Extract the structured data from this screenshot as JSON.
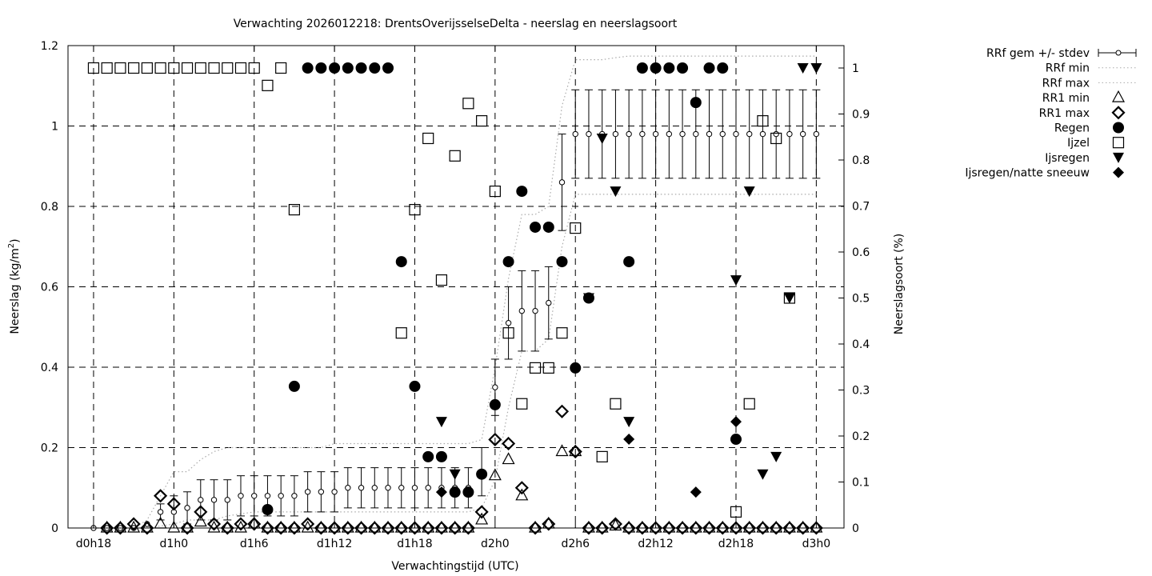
{
  "chart_data": {
    "type": "scatter",
    "title": "Verwachting 2026012218: DrentsOverijsselseDelta - neerslag en neerslagsoort",
    "xlabel": "Verwachtingstijd (UTC)",
    "ylabel": "Neerslag (kg/m²)",
    "ylabel_parts": [
      "Neerslag (kg/m",
      "2",
      ")"
    ],
    "y2label": "Neerslagsoort (%)",
    "x_unit": "hours since d0h0",
    "xlim": [
      16.09,
      74.07
    ],
    "ylim": [
      0,
      1.2
    ],
    "y2lim": [
      0,
      1.0487
    ],
    "grid": true,
    "legend_position": "outside-right-top",
    "x_ticks": [
      {
        "v": 18,
        "label": "d0h18"
      },
      {
        "v": 24,
        "label": "d1h0"
      },
      {
        "v": 30,
        "label": "d1h6"
      },
      {
        "v": 36,
        "label": "d1h12"
      },
      {
        "v": 42,
        "label": "d1h18"
      },
      {
        "v": 48,
        "label": "d2h0"
      },
      {
        "v": 54,
        "label": "d2h6"
      },
      {
        "v": 60,
        "label": "d2h12"
      },
      {
        "v": 66,
        "label": "d2h18"
      },
      {
        "v": 72,
        "label": "d3h0"
      }
    ],
    "y_ticks": [
      {
        "v": 0,
        "label": "0"
      },
      {
        "v": 0.2,
        "label": "0.2"
      },
      {
        "v": 0.4,
        "label": "0.4"
      },
      {
        "v": 0.6,
        "label": "0.6"
      },
      {
        "v": 0.8,
        "label": "0.8"
      },
      {
        "v": 1.0,
        "label": "1"
      },
      {
        "v": 1.2,
        "label": "1.2"
      }
    ],
    "y2_ticks": [
      {
        "v": 0,
        "label": "0"
      },
      {
        "v": 0.1,
        "label": "0.1"
      },
      {
        "v": 0.2,
        "label": "0.2"
      },
      {
        "v": 0.3,
        "label": "0.3"
      },
      {
        "v": 0.4,
        "label": "0.4"
      },
      {
        "v": 0.5,
        "label": "0.5"
      },
      {
        "v": 0.6,
        "label": "0.6"
      },
      {
        "v": 0.7,
        "label": "0.7"
      },
      {
        "v": 0.8,
        "label": "0.8"
      },
      {
        "v": 0.9,
        "label": "0.9"
      },
      {
        "v": 1.0,
        "label": "1"
      }
    ],
    "hours_start": 18,
    "legend": [
      "RRf gem +/- stdev",
      "RRf min",
      "RRf max",
      "RR1 min",
      "RR1 max",
      "Regen",
      "Ijzel",
      "Ijsregen",
      "Ijsregen/natte sneeuw"
    ],
    "rrf_mean": [
      0,
      0,
      0,
      0,
      0.01,
      0.04,
      0.04,
      0.05,
      0.07,
      0.07,
      0.07,
      0.08,
      0.08,
      0.08,
      0.08,
      0.08,
      0.09,
      0.09,
      0.09,
      0.1,
      0.1,
      0.1,
      0.1,
      0.1,
      0.1,
      0.1,
      0.1,
      0.1,
      0.1,
      0.14,
      0.35,
      0.51,
      0.54,
      0.54,
      0.56,
      0.86,
      0.98,
      0.98,
      0.98,
      0.98,
      0.98,
      0.98,
      0.98,
      0.98,
      0.98,
      0.98,
      0.98,
      0.98,
      0.98,
      0.98,
      0.98,
      0.98,
      0.98,
      0.98,
      0.98
    ],
    "rrf_stdev": [
      0,
      0,
      0,
      0,
      0,
      0.02,
      0.04,
      0.04,
      0.05,
      0.05,
      0.05,
      0.05,
      0.05,
      0.05,
      0.05,
      0.05,
      0.05,
      0.05,
      0.05,
      0.05,
      0.05,
      0.05,
      0.05,
      0.05,
      0.05,
      0.05,
      0.05,
      0.05,
      0.05,
      0.06,
      0.07,
      0.09,
      0.1,
      0.1,
      0.09,
      0.12,
      0.11,
      0.11,
      0.11,
      0.11,
      0.11,
      0.11,
      0.11,
      0.11,
      0.11,
      0.11,
      0.11,
      0.11,
      0.11,
      0.11,
      0.11,
      0.11,
      0.11,
      0.11,
      0.11
    ],
    "rrf_min": [
      0,
      0,
      0,
      0,
      0,
      0.005,
      0.01,
      0.02,
      0.02,
      0.02,
      0.03,
      0.035,
      0.04,
      0.04,
      0.04,
      0.04,
      0.04,
      0.04,
      0.04,
      0.04,
      0.04,
      0.04,
      0.04,
      0.04,
      0.04,
      0.04,
      0.04,
      0.04,
      0.04,
      0.05,
      0.12,
      0.3,
      0.44,
      0.44,
      0.47,
      0.7,
      0.83,
      0.83,
      0.83,
      0.83,
      0.83,
      0.83,
      0.83,
      0.83,
      0.83,
      0.83,
      0.83,
      0.83,
      0.83,
      0.83,
      0.83,
      0.83,
      0.83,
      0.83,
      0.83
    ],
    "rrf_max": [
      0,
      0,
      0,
      0,
      0.02,
      0.08,
      0.14,
      0.14,
      0.17,
      0.19,
      0.2,
      0.2,
      0.2,
      0.2,
      0.2,
      0.2,
      0.2,
      0.2,
      0.21,
      0.21,
      0.21,
      0.21,
      0.21,
      0.21,
      0.21,
      0.21,
      0.21,
      0.21,
      0.21,
      0.22,
      0.4,
      0.62,
      0.78,
      0.78,
      0.8,
      1.05,
      1.165,
      1.165,
      1.165,
      1.17,
      1.174,
      1.174,
      1.174,
      1.174,
      1.174,
      1.174,
      1.174,
      1.174,
      1.174,
      1.174,
      1.174,
      1.174,
      1.174,
      1.174,
      1.174
    ],
    "rr1_min": [
      null,
      0,
      0,
      0,
      0,
      0.01,
      0,
      0,
      0.015,
      0,
      0,
      0,
      0.01,
      0,
      0,
      0,
      0,
      0,
      0,
      0,
      0,
      0,
      0,
      0,
      0,
      0,
      0,
      0,
      0,
      0.02,
      0.13,
      0.17,
      0.08,
      0,
      0.01,
      0.19,
      0.19,
      0,
      0,
      0.005,
      0,
      0,
      0,
      0,
      0,
      0,
      0,
      0,
      0,
      0,
      0,
      0,
      0,
      0,
      0
    ],
    "rr1_max": [
      null,
      0,
      0,
      0.01,
      0,
      0.08,
      0.06,
      0,
      0.04,
      0.01,
      0,
      0.01,
      0.01,
      0,
      0,
      0,
      0.01,
      0,
      0,
      0,
      0,
      0,
      0,
      0,
      0,
      0,
      0,
      0,
      0,
      0.04,
      0.22,
      0.21,
      0.1,
      0,
      0.01,
      0.29,
      0.19,
      0,
      0,
      0.01,
      0,
      0,
      0,
      0,
      0,
      0,
      0,
      0,
      0,
      0,
      0,
      0,
      0,
      0,
      0
    ],
    "regen": [
      [
        31,
        0.04
      ],
      [
        33,
        0.308
      ],
      [
        34,
        1
      ],
      [
        35,
        1
      ],
      [
        36,
        1
      ],
      [
        37,
        1
      ],
      [
        38,
        1
      ],
      [
        39,
        1
      ],
      [
        40,
        1
      ],
      [
        41,
        0.579
      ],
      [
        42,
        0.308
      ],
      [
        43,
        0.155
      ],
      [
        44,
        0.155
      ],
      [
        45,
        0.078
      ],
      [
        46,
        0.078
      ],
      [
        47,
        0.117
      ],
      [
        48,
        0.268
      ],
      [
        49,
        0.579
      ],
      [
        50,
        0.732
      ],
      [
        51,
        0.654
      ],
      [
        52,
        0.654
      ],
      [
        53,
        0.579
      ],
      [
        54,
        0.348
      ],
      [
        55,
        0.5
      ],
      [
        58,
        0.579
      ],
      [
        59,
        1
      ],
      [
        60,
        1
      ],
      [
        61,
        1
      ],
      [
        62,
        1
      ],
      [
        63,
        0.925
      ],
      [
        64,
        1
      ],
      [
        65,
        1
      ],
      [
        66,
        0.193
      ]
    ],
    "ijzel": [
      [
        18,
        1
      ],
      [
        19,
        1
      ],
      [
        20,
        1
      ],
      [
        21,
        1
      ],
      [
        22,
        1
      ],
      [
        23,
        1
      ],
      [
        24,
        1
      ],
      [
        25,
        1
      ],
      [
        26,
        1
      ],
      [
        27,
        1
      ],
      [
        28,
        1
      ],
      [
        29,
        1
      ],
      [
        30,
        1
      ],
      [
        31,
        0.962
      ],
      [
        32,
        1
      ],
      [
        33,
        0.692
      ],
      [
        41,
        0.424
      ],
      [
        42,
        0.692
      ],
      [
        43,
        0.847
      ],
      [
        44,
        0.539
      ],
      [
        45,
        0.809
      ],
      [
        46,
        0.923
      ],
      [
        47,
        0.885
      ],
      [
        48,
        0.732
      ],
      [
        49,
        0.424
      ],
      [
        50,
        0.27
      ],
      [
        51,
        0.348
      ],
      [
        52,
        0.348
      ],
      [
        53,
        0.424
      ],
      [
        54,
        0.652
      ],
      [
        56,
        0.155
      ],
      [
        57,
        0.27
      ],
      [
        66,
        0.035
      ],
      [
        67,
        0.27
      ],
      [
        68,
        0.885
      ],
      [
        69,
        0.847
      ],
      [
        70,
        0.5
      ]
    ],
    "ijsregen": [
      [
        44,
        0.231
      ],
      [
        45,
        0.117
      ],
      [
        55,
        0.5
      ],
      [
        56,
        0.847
      ],
      [
        57,
        0.732
      ],
      [
        58,
        0.231
      ],
      [
        66,
        0.539
      ],
      [
        67,
        0.732
      ],
      [
        68,
        0.117
      ],
      [
        69,
        0.155
      ],
      [
        70,
        0.5
      ],
      [
        71,
        1
      ],
      [
        72,
        1
      ]
    ],
    "ijsregen_natte_sneeuw": [
      [
        44,
        0.078
      ],
      [
        58,
        0.193
      ],
      [
        63,
        0.078
      ],
      [
        66,
        0.231
      ]
    ]
  }
}
